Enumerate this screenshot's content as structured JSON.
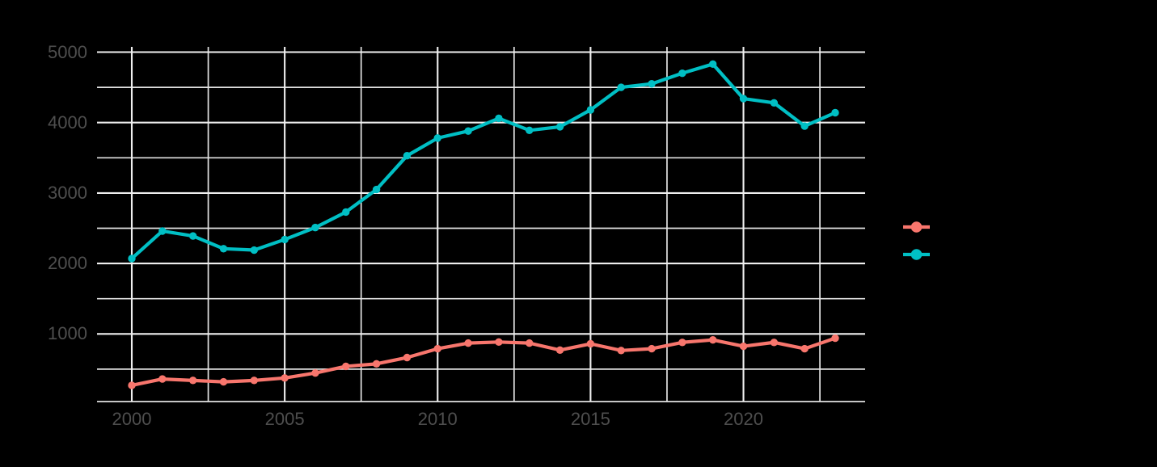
{
  "style": {
    "background_color": "#000000",
    "axis_text_color": "#4e4e4e",
    "grid_major_color": "#efefef",
    "grid_minor_color": "#e3e3e3"
  },
  "chart_data": {
    "type": "line",
    "title": "",
    "xlabel": "",
    "ylabel": "",
    "x": [
      2000,
      2001,
      2002,
      2003,
      2004,
      2005,
      2006,
      2007,
      2008,
      2009,
      2010,
      2011,
      2012,
      2013,
      2014,
      2015,
      2016,
      2017,
      2018,
      2019,
      2020,
      2021,
      2022,
      2023
    ],
    "series": [
      {
        "name": "salmon-series",
        "color": "#F8766D",
        "values": [
          270,
          360,
          340,
          320,
          340,
          375,
          445,
          540,
          575,
          665,
          790,
          870,
          885,
          870,
          770,
          860,
          765,
          790,
          880,
          915,
          825,
          880,
          790,
          940
        ]
      },
      {
        "name": "teal-series",
        "color": "#00BFC4",
        "values": [
          2070,
          2460,
          2390,
          2210,
          2190,
          2340,
          2510,
          2730,
          3050,
          3530,
          3780,
          3880,
          4060,
          3890,
          3940,
          4180,
          4500,
          4550,
          4700,
          4830,
          4340,
          4280,
          3950,
          4140
        ]
      }
    ],
    "xlim": [
      1998.9,
      2024.0
    ],
    "ylim": [
      0,
      5090
    ],
    "x_major_ticks": [
      2000,
      2005,
      2010,
      2015,
      2020
    ],
    "x_minor_ticks": [
      2002.5,
      2007.5,
      2012.5,
      2017.5,
      2022.5
    ],
    "x_tick_labels": [
      "2000",
      "2005",
      "2010",
      "2015",
      "2020"
    ],
    "y_major_ticks": [
      1000,
      2000,
      3000,
      4000,
      5000
    ],
    "y_minor_ticks": [
      0,
      500,
      1500,
      2500,
      3500,
      4500
    ],
    "y_tick_labels": [
      "1000",
      "2000",
      "3000",
      "4000",
      "5000"
    ],
    "grid": {
      "visible": true,
      "style": "major-and-minor, light gridlines on dark background"
    },
    "legend_position": "right",
    "legend": [
      {
        "key": "salmon-key",
        "swatch_color": "#F8766D",
        "label": ""
      },
      {
        "key": "teal-key",
        "swatch_color": "#00BFC4",
        "label": ""
      }
    ]
  }
}
